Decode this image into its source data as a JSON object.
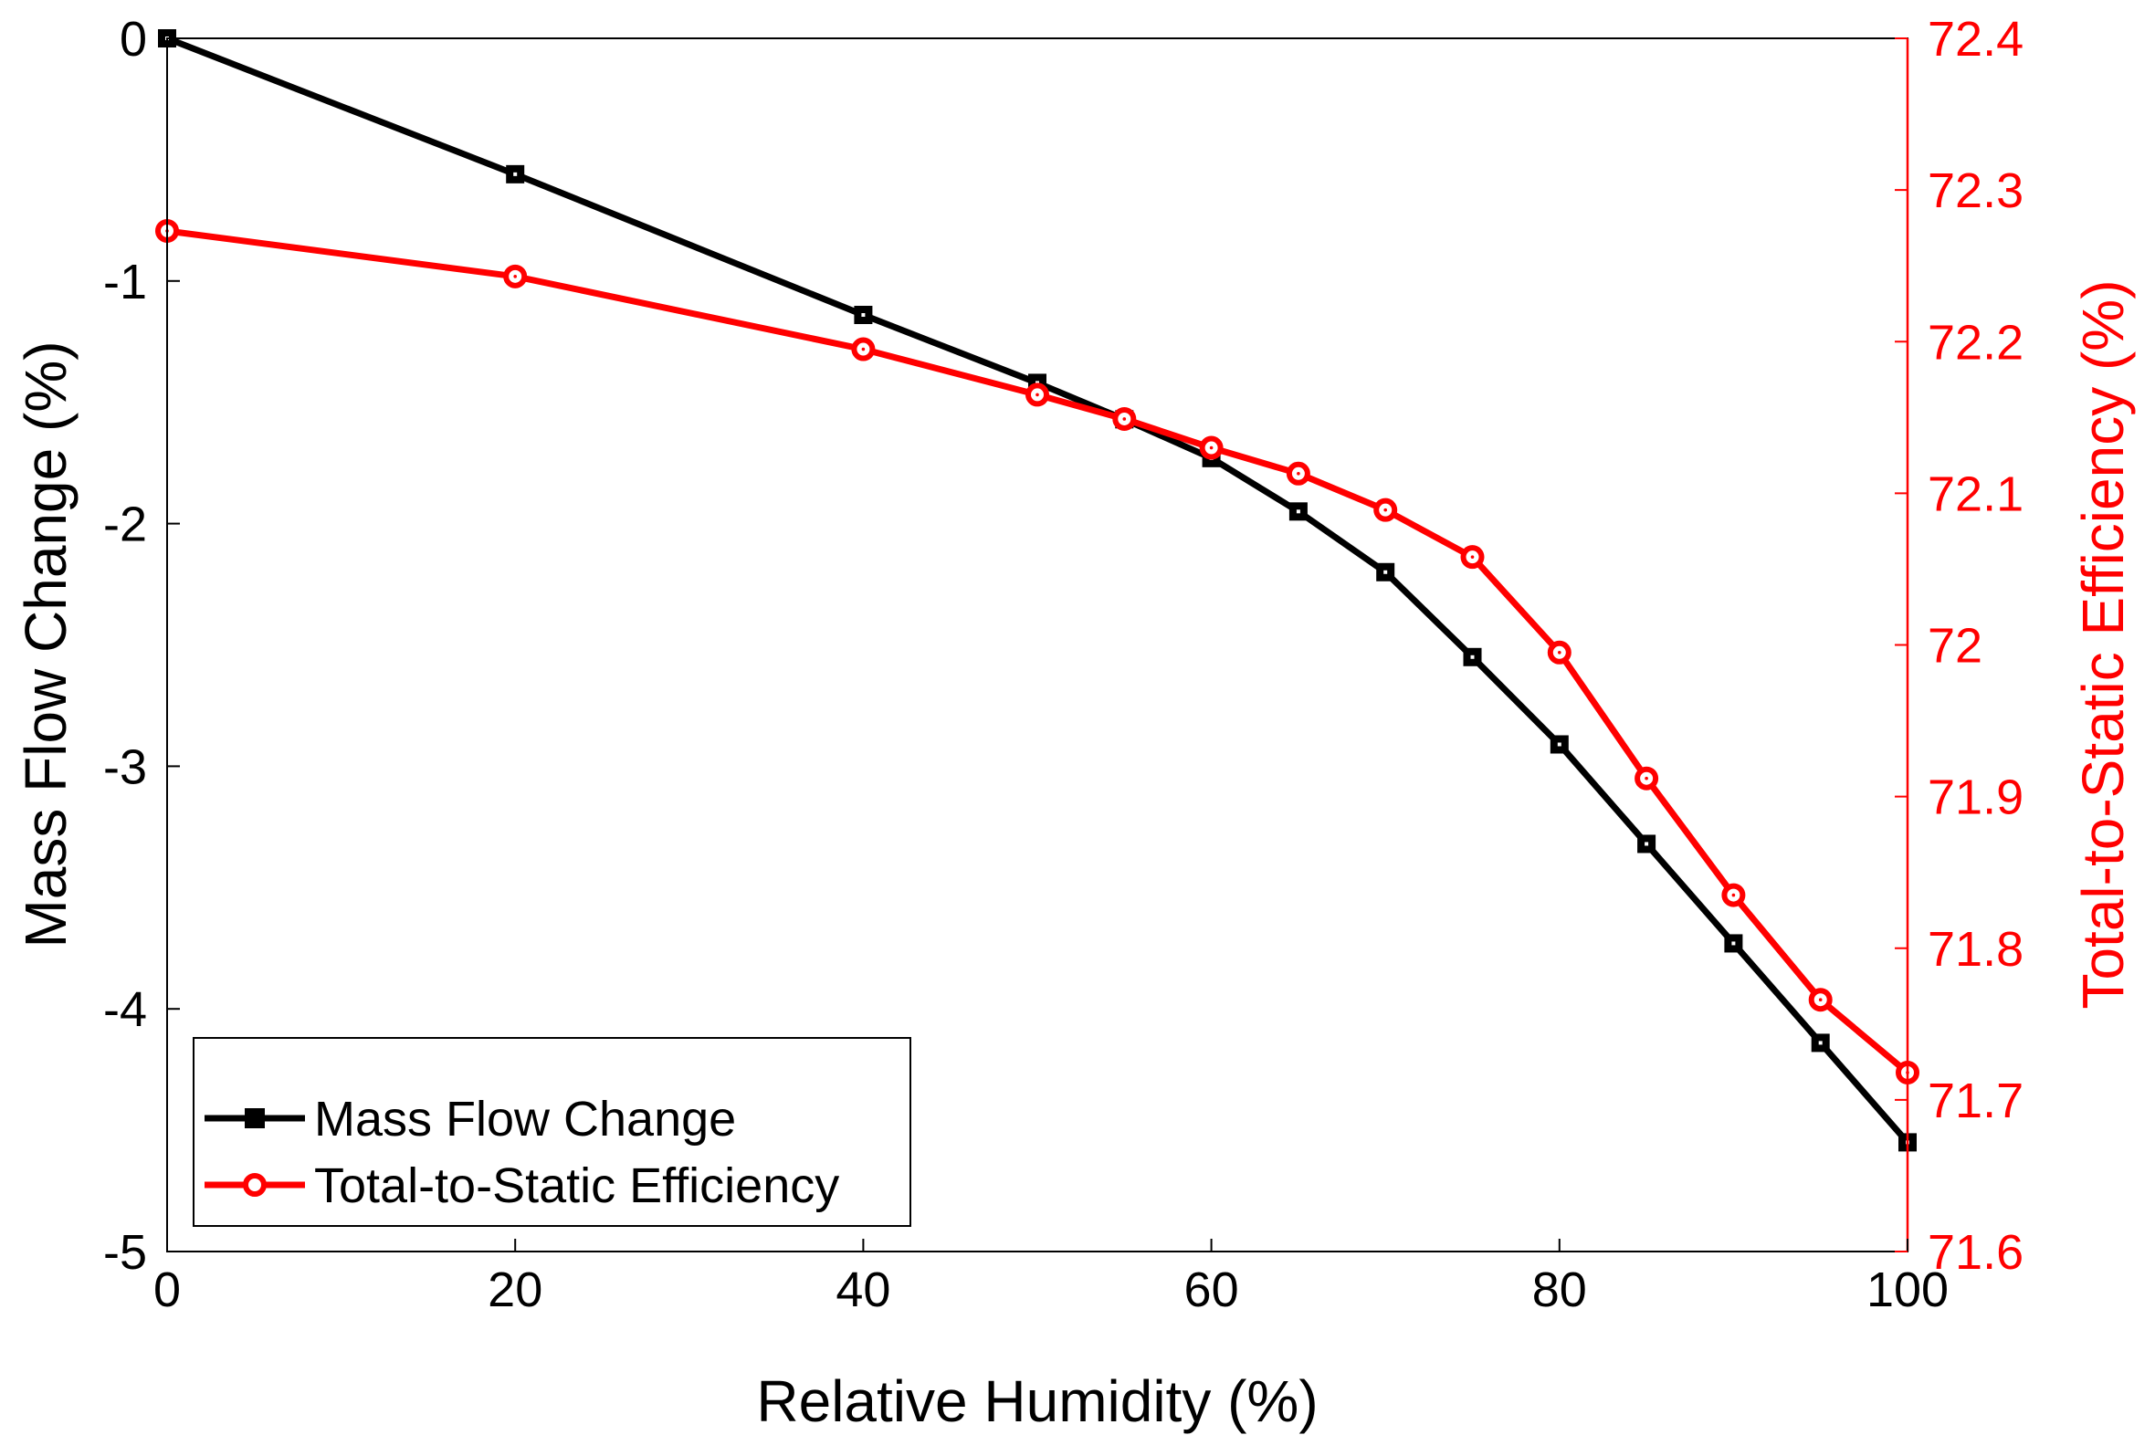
{
  "chart_data": {
    "type": "line",
    "title": "",
    "xlabel": "Relative Humidity (%)",
    "ylabel_left": "Mass Flow Change (%)",
    "ylabel_right": "Total-to-Static Efficiency (%)",
    "xlim": [
      0,
      100
    ],
    "ylim_left": [
      -5,
      0
    ],
    "ylim_right": [
      71.6,
      72.4
    ],
    "x_ticks": [
      0,
      20,
      40,
      60,
      80,
      100
    ],
    "y_left_ticks": [
      0,
      -1,
      -2,
      -3,
      -4,
      -5
    ],
    "y_right_ticks": [
      72.4,
      72.3,
      72.2,
      72.1,
      72,
      71.9,
      71.8,
      71.7,
      71.6
    ],
    "grid": false,
    "legend_position": "bottom-left",
    "colors": {
      "left_axis": "#000000",
      "right_axis": "#ff0000"
    },
    "series": [
      {
        "name": "Mass Flow Change",
        "axis": "left",
        "color": "#000000",
        "marker": "square",
        "x": [
          0,
          20,
          40,
          50,
          55,
          60,
          65,
          70,
          75,
          80,
          85,
          90,
          95,
          100
        ],
        "values": [
          0,
          -0.56,
          -1.14,
          -1.42,
          -1.57,
          -1.73,
          -1.95,
          -2.2,
          -2.55,
          -2.91,
          -3.32,
          -3.73,
          -4.14,
          -4.55
        ]
      },
      {
        "name": "Total-to-Static Efficiency",
        "axis": "right",
        "color": "#ff0000",
        "marker": "circle",
        "x": [
          0,
          20,
          40,
          50,
          55,
          60,
          65,
          70,
          75,
          80,
          85,
          90,
          95,
          100
        ],
        "values": [
          72.273,
          72.243,
          72.195,
          72.165,
          72.149,
          72.13,
          72.113,
          72.089,
          72.058,
          71.995,
          71.912,
          71.835,
          71.766,
          71.718
        ]
      }
    ]
  }
}
